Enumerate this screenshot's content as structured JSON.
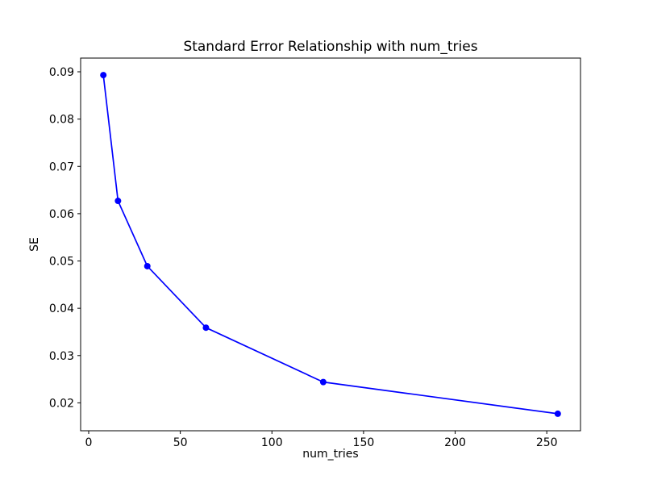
{
  "chart_data": {
    "type": "line",
    "title": "Standard Error Relationship with num_tries",
    "xlabel": "num_tries",
    "ylabel": "SE",
    "x": [
      8,
      16,
      32,
      64,
      128,
      256
    ],
    "y": [
      0.0893,
      0.0627,
      0.0489,
      0.0359,
      0.0244,
      0.0177
    ],
    "series": [
      {
        "name": "SE",
        "x": [
          8,
          16,
          32,
          64,
          128,
          256
        ],
        "y": [
          0.0893,
          0.0627,
          0.0489,
          0.0359,
          0.0244,
          0.0177
        ]
      }
    ],
    "xlim": [
      -4.4,
      268.4
    ],
    "ylim": [
      0.0141,
      0.0929
    ],
    "xticks": [
      0,
      50,
      100,
      150,
      200,
      250
    ],
    "yticks": [
      0.02,
      0.03,
      0.04,
      0.05,
      0.06,
      0.07,
      0.08,
      0.09
    ],
    "ytick_decimals": 2,
    "grid": false,
    "legend_position": "none",
    "line_color": "#0000ff",
    "marker": "circle",
    "marker_color": "#0000ff",
    "axis_color": "#000000",
    "background_color": "#ffffff"
  }
}
